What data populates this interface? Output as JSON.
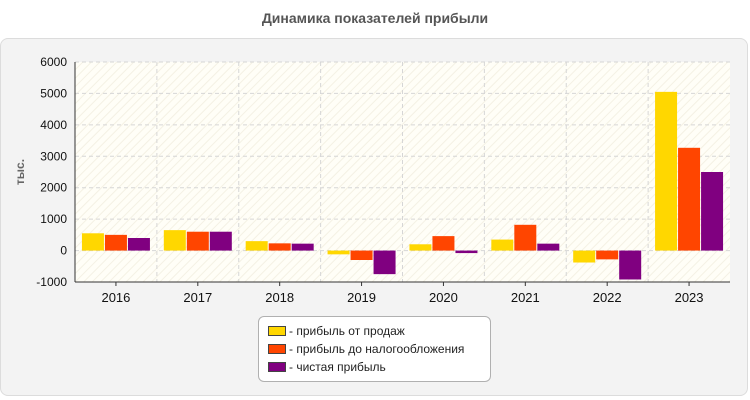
{
  "chart_data": {
    "type": "bar",
    "title": "Динамика показателей прибыли",
    "ylabel": "тыс.",
    "xlabel": "",
    "categories": [
      "2016",
      "2017",
      "2018",
      "2019",
      "2020",
      "2021",
      "2022",
      "2023"
    ],
    "ylim": [
      -1000,
      6000
    ],
    "yticks": [
      -1000,
      0,
      1000,
      2000,
      3000,
      4000,
      5000,
      6000
    ],
    "grid": true,
    "legend_position": "bottom",
    "series": [
      {
        "name": "- прибыль от продаж",
        "color": "#FFD700",
        "values": [
          550,
          650,
          300,
          -120,
          200,
          350,
          -380,
          5050
        ]
      },
      {
        "name": "- прибыль до налогообложения",
        "color": "#FF4500",
        "values": [
          500,
          600,
          230,
          -300,
          460,
          820,
          -280,
          3270
        ]
      },
      {
        "name": "- чистая прибыль",
        "color": "#800080",
        "values": [
          400,
          600,
          220,
          -750,
          -80,
          220,
          -920,
          2500
        ]
      }
    ]
  }
}
